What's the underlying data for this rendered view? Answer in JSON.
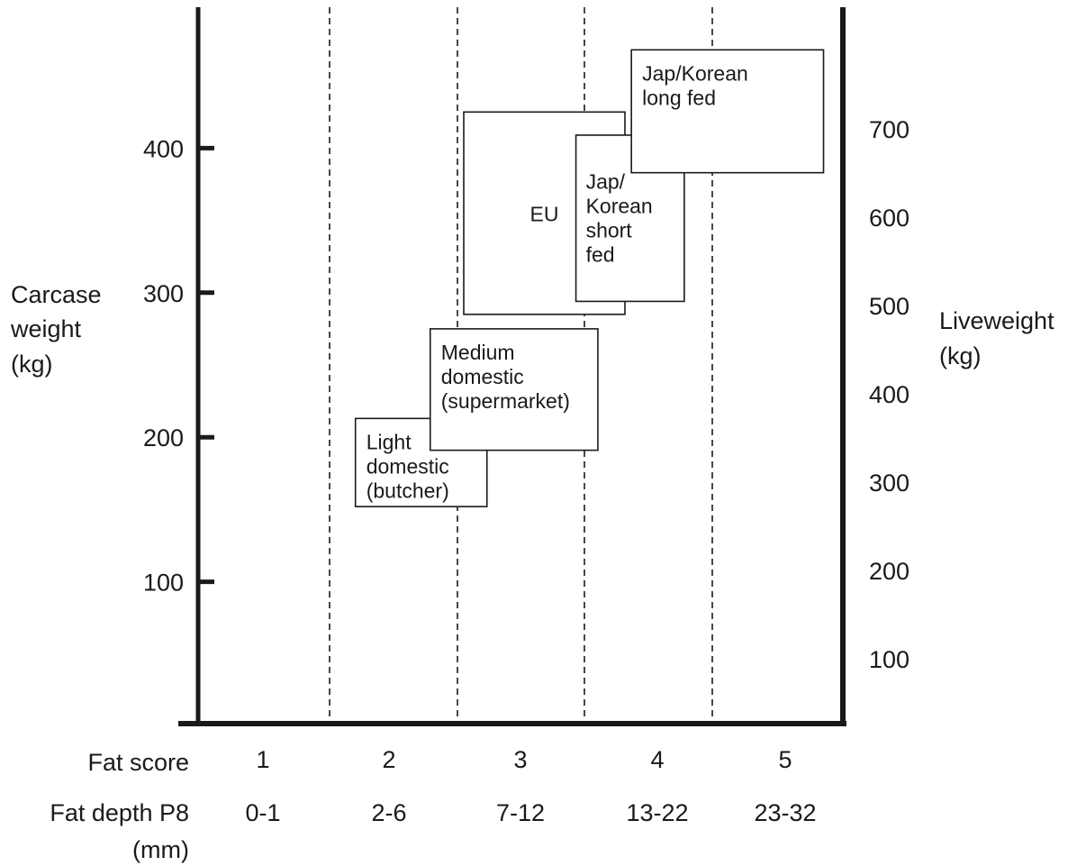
{
  "chart_data": {
    "type": "box-region",
    "y_left": {
      "title": [
        "Carcase",
        "weight",
        "(kg)"
      ],
      "ticks": [
        100,
        200,
        300,
        400
      ],
      "range": [
        0,
        500
      ]
    },
    "y_right": {
      "title": [
        "Liveweight",
        "(kg)"
      ],
      "ticks": [
        100,
        200,
        300,
        400,
        500,
        600,
        700
      ],
      "range": [
        40,
        840
      ]
    },
    "x": {
      "fat_score_label": "Fat score",
      "fat_depth_label": [
        "Fat depth P8",
        "(mm)"
      ],
      "categories": [
        {
          "score": "1",
          "depth": "0-1"
        },
        {
          "score": "2",
          "depth": "2-6"
        },
        {
          "score": "3",
          "depth": "7-12"
        },
        {
          "score": "4",
          "depth": "13-22"
        },
        {
          "score": "5",
          "depth": "23-32"
        }
      ],
      "range": [
        0.5,
        5.5
      ]
    },
    "regions": [
      {
        "lines": [
          "Light",
          "domestic",
          "(butcher)"
        ],
        "x_min": 1.72,
        "x_max": 2.74,
        "y_min": 152,
        "y_max": 213
      },
      {
        "lines": [
          "Medium",
          "domestic",
          "(supermarket)"
        ],
        "x_min": 2.3,
        "x_max": 3.6,
        "y_min": 191,
        "y_max": 275
      },
      {
        "lines": [
          "EU"
        ],
        "x_min": 2.56,
        "x_max": 3.81,
        "y_min": 285,
        "y_max": 425
      },
      {
        "lines": [
          "Jap/",
          "Korean",
          "short",
          "fed"
        ],
        "x_min": 3.43,
        "x_max": 4.27,
        "y_min": 294,
        "y_max": 409
      },
      {
        "lines": [
          "Jap/Korean",
          "long fed"
        ],
        "x_min": 3.86,
        "x_max": 5.35,
        "y_min": 383,
        "y_max": 468
      }
    ]
  }
}
